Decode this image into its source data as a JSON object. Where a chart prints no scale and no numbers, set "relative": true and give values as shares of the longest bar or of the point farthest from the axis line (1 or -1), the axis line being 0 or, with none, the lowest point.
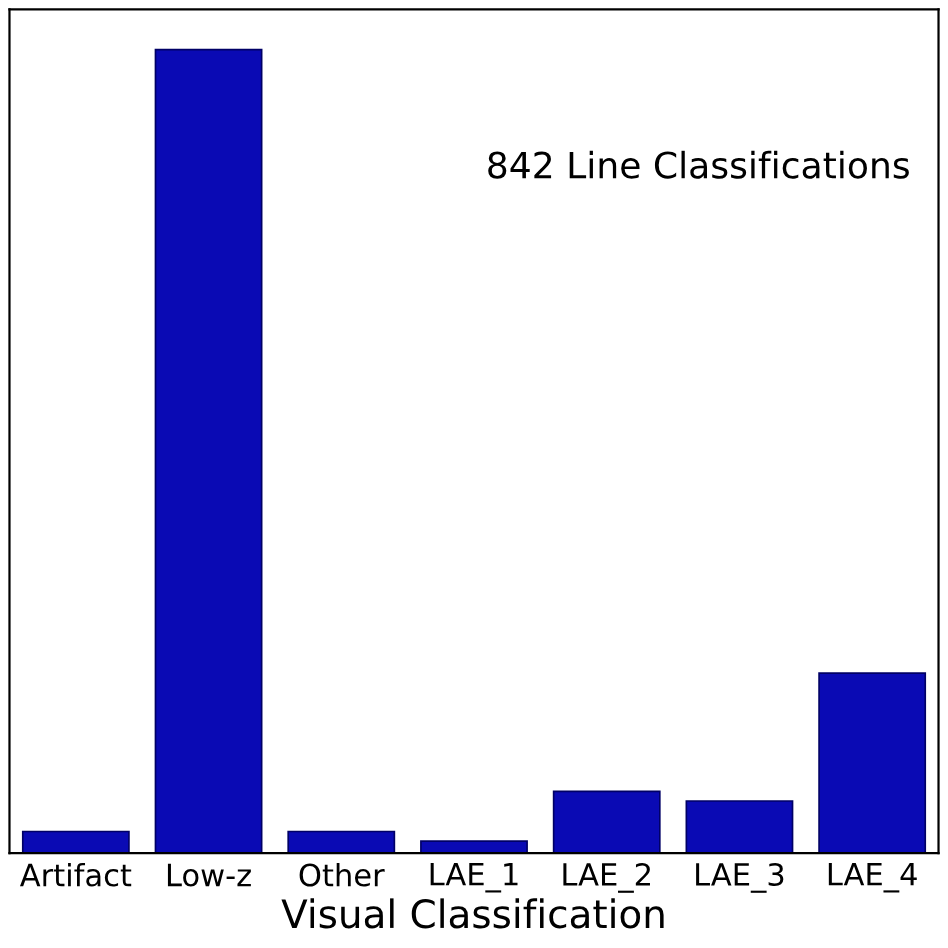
{
  "chart_data": {
    "type": "bar",
    "relative": true,
    "xlabel": "Visual Classification",
    "categories": [
      "Artifact",
      "Low-z",
      "Other",
      "LAE_1",
      "LAE_2",
      "LAE_3",
      "LAE_4"
    ],
    "values": [
      0.027,
      1,
      0.027,
      0.015,
      0.077,
      0.065,
      0.224
    ],
    "color": "#0a0ab4",
    "annotations": [
      "842 Line Classifications"
    ]
  }
}
